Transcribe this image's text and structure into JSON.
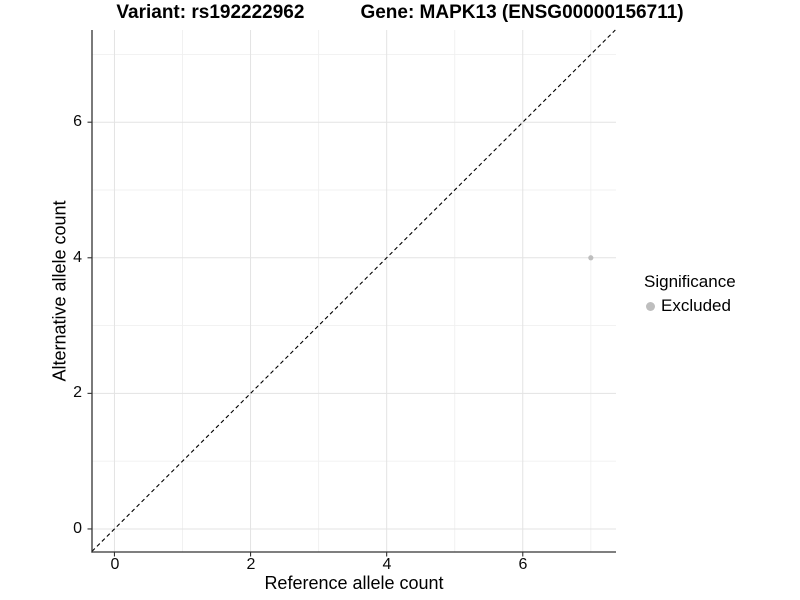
{
  "title": {
    "variant": "Variant: rs192222962",
    "gene": "Gene: MAPK13 (ENSG00000156711)"
  },
  "axes": {
    "x": {
      "label": "Reference allele count",
      "ticks": [
        "0",
        "2",
        "4",
        "6"
      ]
    },
    "y": {
      "label": "Alternative allele count",
      "ticks": [
        "0",
        "2",
        "4",
        "6"
      ]
    }
  },
  "legend": {
    "title": "Significance",
    "items": [
      {
        "label": "Excluded",
        "color": "#bebebe"
      }
    ]
  },
  "colors": {
    "background": "#ffffff",
    "grid_major": "#e3e3e3",
    "grid_minor": "#f0f0f0",
    "axis_line": "#333333",
    "identity_line": "#000000",
    "text": "#000000"
  },
  "chart_data": {
    "type": "scatter",
    "title": "Variant: rs192222962 / Gene: MAPK13 (ENSG00000156711)",
    "xlabel": "Reference allele count",
    "ylabel": "Alternative allele count",
    "xlim": [
      -0.33,
      7.37
    ],
    "ylim": [
      -0.34,
      7.36
    ],
    "x_major_ticks": [
      0,
      2,
      4,
      6
    ],
    "y_major_ticks": [
      0,
      2,
      4,
      6
    ],
    "x_minor_ticks": [
      1,
      3,
      5,
      7
    ],
    "y_minor_ticks": [
      1,
      3,
      5,
      7
    ],
    "grid": "major and minor, light gray on white",
    "legend_position": "right",
    "identity_line": {
      "slope": 1,
      "intercept": 0,
      "style": "dashed",
      "color": "#000000"
    },
    "series": [
      {
        "name": "Excluded",
        "color": "#bebebe",
        "point_radius_px": 2.6,
        "points": [
          {
            "x": 7,
            "y": 4
          }
        ]
      }
    ]
  }
}
